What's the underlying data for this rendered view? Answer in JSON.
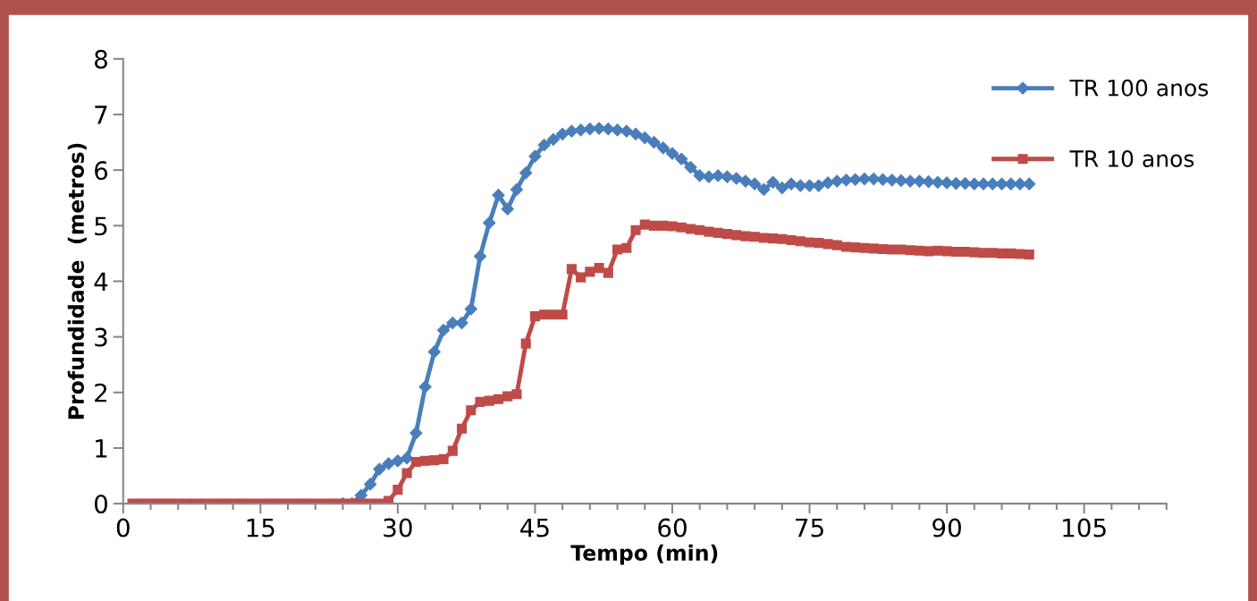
{
  "chart_data": {
    "type": "line",
    "xlabel": "Tempo (min)",
    "ylabel": "Profundidade  (metros)",
    "x": [
      1,
      2,
      3,
      4,
      5,
      6,
      7,
      8,
      9,
      10,
      11,
      12,
      13,
      14,
      15,
      16,
      17,
      18,
      19,
      20,
      21,
      22,
      23,
      24,
      25,
      26,
      27,
      28,
      29,
      30,
      31,
      32,
      33,
      34,
      35,
      36,
      37,
      38,
      39,
      40,
      41,
      42,
      43,
      44,
      45,
      46,
      47,
      48,
      49,
      50,
      51,
      52,
      53,
      54,
      55,
      56,
      57,
      58,
      59,
      60,
      61,
      62,
      63,
      64,
      65,
      66,
      67,
      68,
      69,
      70,
      71,
      72,
      73,
      74,
      75,
      76,
      77,
      78,
      79,
      80,
      81,
      82,
      83,
      84,
      85,
      86,
      87,
      88,
      89,
      90,
      91,
      92,
      93,
      94,
      95,
      96,
      97,
      98,
      99
    ],
    "series": [
      {
        "name": "TR 100 anos",
        "color": "#4a7ebb",
        "marker": "diamond",
        "values": [
          null,
          null,
          null,
          null,
          null,
          null,
          null,
          null,
          null,
          null,
          null,
          null,
          null,
          null,
          null,
          null,
          null,
          null,
          null,
          null,
          null,
          null,
          null,
          0,
          0,
          0.15,
          0.35,
          0.62,
          0.72,
          0.77,
          0.82,
          1.27,
          2.1,
          2.73,
          3.12,
          3.25,
          3.25,
          3.5,
          4.45,
          5.05,
          5.55,
          5.3,
          5.65,
          5.95,
          6.25,
          6.45,
          6.55,
          6.65,
          6.7,
          6.72,
          6.74,
          6.75,
          6.74,
          6.72,
          6.7,
          6.65,
          6.58,
          6.5,
          6.4,
          6.3,
          6.2,
          6.05,
          5.9,
          5.88,
          5.9,
          5.88,
          5.85,
          5.8,
          5.75,
          5.65,
          5.78,
          5.68,
          5.75,
          5.72,
          5.72,
          5.72,
          5.77,
          5.8,
          5.82,
          5.83,
          5.84,
          5.84,
          5.83,
          5.82,
          5.81,
          5.8,
          5.8,
          5.79,
          5.78,
          5.77,
          5.76,
          5.76,
          5.75,
          5.75,
          5.75,
          5.75,
          5.75,
          5.75,
          5.75
        ]
      },
      {
        "name": "TR 10 anos",
        "color": "#be4b48",
        "marker": "square",
        "values": [
          0,
          0,
          0,
          0,
          0,
          0,
          0,
          0,
          0,
          0,
          0,
          0,
          0,
          0,
          0,
          0,
          0,
          0,
          0,
          0,
          0,
          0,
          0,
          0,
          0,
          0,
          0,
          0,
          0.05,
          0.25,
          0.55,
          0.75,
          0.77,
          0.78,
          0.8,
          0.95,
          1.35,
          1.68,
          1.83,
          1.85,
          1.88,
          1.93,
          1.97,
          2.88,
          3.37,
          3.4,
          3.4,
          3.4,
          4.22,
          4.07,
          4.17,
          4.24,
          4.15,
          4.57,
          4.6,
          4.92,
          5.02,
          5.0,
          5.0,
          4.99,
          4.97,
          4.94,
          4.92,
          4.89,
          4.87,
          4.85,
          4.83,
          4.81,
          4.8,
          4.78,
          4.77,
          4.76,
          4.74,
          4.72,
          4.7,
          4.69,
          4.67,
          4.65,
          4.62,
          4.61,
          4.6,
          4.59,
          4.58,
          4.57,
          4.57,
          4.56,
          4.55,
          4.54,
          4.55,
          4.54,
          4.53,
          4.53,
          4.52,
          4.51,
          4.51,
          4.5,
          4.5,
          4.49,
          4.48
        ]
      }
    ],
    "xlim": [
      0,
      114
    ],
    "xticks": [
      0,
      {
        "value": 3,
        "label": null
      },
      {
        "value": 6,
        "label": null
      },
      {
        "value": 9,
        "label": null
      },
      {
        "value": 12,
        "label": null
      },
      15,
      {
        "value": 18,
        "label": null
      },
      {
        "value": 21,
        "label": null
      },
      {
        "value": 24,
        "label": null
      },
      {
        "value": 27,
        "label": null
      },
      30,
      {
        "value": 33,
        "label": null
      },
      {
        "value": 36,
        "label": null
      },
      {
        "value": 39,
        "label": null
      },
      {
        "value": 42,
        "label": null
      },
      45,
      {
        "value": 48,
        "label": null
      },
      {
        "value": 51,
        "label": null
      },
      {
        "value": 54,
        "label": null
      },
      {
        "value": 57,
        "label": null
      },
      60,
      {
        "value": 63,
        "label": null
      },
      {
        "value": 66,
        "label": null
      },
      {
        "value": 69,
        "label": null
      },
      {
        "value": 72,
        "label": null
      },
      75,
      {
        "value": 78,
        "label": null
      },
      {
        "value": 81,
        "label": null
      },
      {
        "value": 84,
        "label": null
      },
      {
        "value": 87,
        "label": null
      },
      90,
      {
        "value": 93,
        "label": null
      },
      {
        "value": 96,
        "label": null
      },
      {
        "value": 99,
        "label": null
      },
      {
        "value": 102,
        "label": null
      },
      105,
      {
        "value": 108,
        "label": null
      },
      {
        "value": 111,
        "label": null
      },
      {
        "value": 114,
        "label": null
      }
    ],
    "ylim": [
      0,
      8
    ],
    "yticks": [
      0,
      1,
      2,
      3,
      4,
      5,
      6,
      7,
      8
    ],
    "grid": false,
    "legend": "right",
    "line_style": "solid"
  }
}
